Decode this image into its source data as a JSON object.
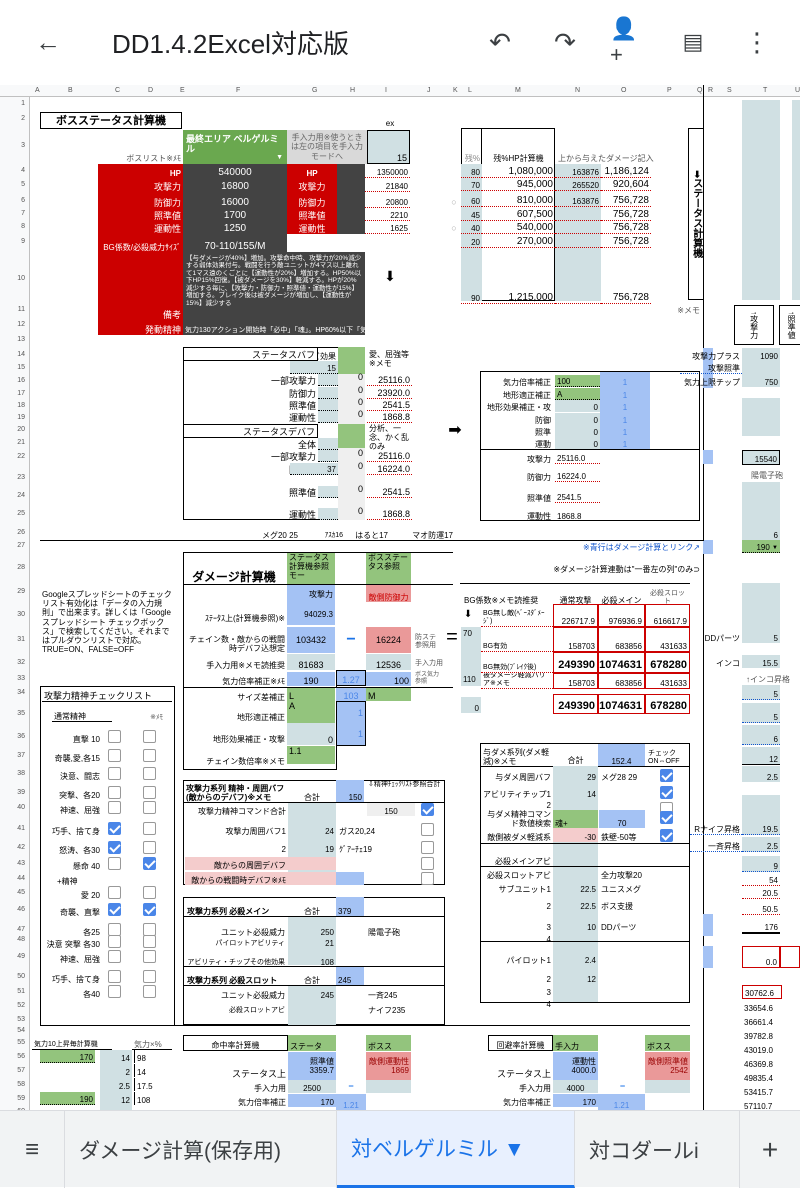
{
  "app": {
    "title": "DD1.4.2Excel対応版",
    "icons": [
      "back-arrow-icon",
      "undo-icon",
      "redo-icon",
      "add-person-icon",
      "comment-icon",
      "more-vert-icon"
    ]
  },
  "columns": [
    "A",
    "B",
    "C",
    "D",
    "E",
    "F",
    "G",
    "H",
    "I",
    "J",
    "K",
    "L",
    "M",
    "N",
    "O",
    "P",
    "Q",
    "R",
    "S",
    "T",
    "U"
  ],
  "boss": {
    "title": "ボスステータス計算機",
    "list_label": "ボスリスト※ﾒﾓ",
    "selected": "最終エリア ベルゲルミル",
    "manual_note": "手入力用※使うときは左の項目を手入力モードへ",
    "ex_label": "ex",
    "ex_value": "15",
    "stats": [
      {
        "label": "HP",
        "value": "540000",
        "manual_label": "HP",
        "manual_value": "1350000"
      },
      {
        "label": "攻撃力",
        "value": "16800",
        "manual_label": "攻撃力",
        "manual_value": "21840"
      },
      {
        "label": "防御力",
        "value": "16000",
        "manual_label": "防御力",
        "manual_value": "20800"
      },
      {
        "label": "照準値",
        "value": "1700",
        "manual_label": "照準値",
        "manual_value": "2210"
      },
      {
        "label": "運動性",
        "value": "1250",
        "manual_label": "運動性",
        "manual_value": "1625"
      }
    ],
    "bg_label": "BG係数/必殺威力ｻｲｽﾞ",
    "bg_value": "70-110/155/M",
    "remarks_label": "備考",
    "remarks": "【与ダメージが40%】増加。攻撃命中時、攻撃力が20%減少する弱体効果付与。戦闘を行う敵ユニットが4マス以上離れて1マス遠のくごとに【運動性が20%】増加する。HP50%以下HP15%回復。【被ダメージを30%】軽減する。HPが20%減少する毎に、【攻撃力・防御力・照準値・運動性が15%】増加する。ブレイク後は被ダメージが増加し、【運動性が15%】減少する",
    "spirit_label": "発動精神",
    "spirit": "気力130アクション開始時「必中」「魂」。HP60%以下「気合」「鉄壁」「集中」。HP40%以下「不屈」「屈"
  },
  "hp_calc": {
    "headers": [
      "残%",
      "残%HP計算機",
      "上から与えたダメージ記入"
    ],
    "rows": [
      {
        "pct": "80",
        "hp": "1,080,000",
        "dmg": "163876",
        "rem": "1,186,124"
      },
      {
        "pct": "70",
        "hp": "945,000",
        "dmg": "265520",
        "rem": "920,604"
      },
      {
        "pct": "60",
        "hp": "810,000",
        "dmg": "163876",
        "rem": "756,728"
      },
      {
        "pct": "45",
        "hp": "607,500",
        "dmg": "",
        "rem": "756,728"
      },
      {
        "pct": "40",
        "hp": "540,000",
        "dmg": "",
        "rem": "756,728"
      },
      {
        "pct": "20",
        "hp": "270,000",
        "dmg": "",
        "rem": "756,728"
      },
      {
        "pct": "90",
        "hp": "1,215,000",
        "dmg": "",
        "rem": "756,728"
      }
    ],
    "marker": "○"
  },
  "side": {
    "title": "➡ステータス計算機",
    "memo": "※メモ",
    "col1": "↑攻撃力",
    "col2": "↑照準値",
    "rows": [
      {
        "label": "攻撃力プラス",
        "value": "1090"
      },
      {
        "label": "攻撃照準",
        "value": ""
      },
      {
        "label": "気力上限チップ",
        "value": "750"
      }
    ],
    "total": "15540",
    "weapon": "陽電子砲",
    "v6": "6",
    "kiryoku": "190",
    "dd_label": "DDパーツ",
    "dd_value": "5",
    "inko_label": "インコ",
    "inko_value": "15.5",
    "inko_up": "↑インコ昇格",
    "vals": [
      "5",
      "5",
      "6",
      "12",
      "2.5"
    ],
    "rknife_label": "Rナイフ昇格",
    "rknife": "19.5",
    "issei_label": "一斉昇格",
    "issei": "2.5",
    "more": [
      "9",
      "54",
      "20.5",
      "50.5",
      "176"
    ],
    "zero": "0.0",
    "series": [
      "30762.6",
      "33654.6",
      "36661.4",
      "39782.8",
      "43019.0",
      "46369.8",
      "49835.4",
      "53415.7",
      "57110.7"
    ]
  },
  "buff": {
    "title": "ステータスバフ",
    "abi_label": "アビ効果",
    "note": "愛、屈強等※メモ",
    "rows": [
      {
        "label": "全体",
        "input": "15",
        "base": "",
        "value": ""
      },
      {
        "label": "一部攻撃力",
        "input": "",
        "base": "0",
        "value": "25116.0"
      },
      {
        "label": "防御力",
        "input": "",
        "base": "0",
        "value": "23920.0"
      },
      {
        "label": "照準値",
        "input": "",
        "base": "0",
        "value": "2541.5"
      },
      {
        "label": "運動性",
        "input": "",
        "base": "0",
        "value": "1868.8"
      }
    ]
  },
  "debuff": {
    "title": "ステータスデバフ",
    "note": "分析、一念、かく乱のみ",
    "rows": [
      {
        "label": "全体",
        "input": "",
        "base": "",
        "value": ""
      },
      {
        "label": "一部攻撃力",
        "input": "",
        "base": "0",
        "value": "25116.0"
      },
      {
        "label": "防御力",
        "input": "37",
        "base": "0",
        "value": "16224.0"
      },
      {
        "label": "照準値",
        "input": "",
        "base": "0",
        "value": "2541.5"
      },
      {
        "label": "運動性",
        "input": "",
        "base": "0",
        "value": "1868.8"
      }
    ]
  },
  "arrow_right": "➡",
  "arrow_down": "⬇",
  "mods": {
    "rows": [
      {
        "label": "気力倍率補正",
        "input": "100",
        "mult": "1"
      },
      {
        "label": "地形適正補正",
        "input": "A",
        "mult": "1"
      },
      {
        "label": "地形効果補正・攻",
        "input": "0",
        "mult": "1"
      },
      {
        "label": "防御",
        "input": "0",
        "mult": "1"
      },
      {
        "label": "照準",
        "input": "0",
        "mult": "1"
      },
      {
        "label": "運動",
        "input": "0",
        "mult": "1"
      }
    ],
    "results": [
      {
        "label": "攻撃力",
        "value": "25116.0"
      },
      {
        "label": "防御力",
        "value": "16224.0"
      },
      {
        "label": "照準値",
        "value": "2541.5"
      },
      {
        "label": "運動性",
        "value": "1868.8"
      }
    ]
  },
  "notes": {
    "memo_row": [
      "メグ20 25",
      "ｱｽｶ16",
      "はると17",
      "マオ防運17"
    ],
    "blue_link": "※青行はダメージ計算とリンク↗",
    "dmg_link": "※ダメージ計算連動は\"一番左の列\"のみ⊃",
    "google": "Googleスプレッドシートのチェックリスト有効化は「データの入力規則」で出来ます。詳しくは「Googleスプレッドシート チェックボックス」で検索してください。それまではプルダウンリストで対応。TRUE=ON、FALSE=OFF"
  },
  "damage": {
    "title": "ダメージ計算機",
    "mode1": "ステータス計算機参照モー",
    "mode2": "ボスステータス参照",
    "atk_label": "攻撃力",
    "def_label": "敵側防御力",
    "status_label": "ｽﾃｰﾀｽ上(計算機参照)※",
    "status_value": "94029.3",
    "chain_label": "チェイン数・敵からの戦闘時デバフ込想定",
    "chain_value": "103432",
    "def_value": "16224",
    "def_note": "防ステ参照用",
    "manual_label": "手入力用※メモ読推奨",
    "manual_value": "81683",
    "manual_def": "12536",
    "manual_note": "手入力用",
    "kiryoku_label": "気力倍率補正※ﾒﾓ",
    "kiryoku": "190",
    "kiryoku_mult": "1.27",
    "boss_kiryoku": "100",
    "boss_kiryoku_note": "ボス気力参照",
    "size_label": "サイズ差補正",
    "size": "L",
    "size_mult": "103",
    "boss_size": "M",
    "terrain_label": "地形適正補正",
    "terrain": "A",
    "terrain_mult": "1",
    "terrain_eff_label": "地形効果補正・攻撃",
    "terrain_eff": "0",
    "terrain_eff_mult": "1",
    "chain_rate_label": "チェイン数倍率※メモ",
    "chain_rate": "1.1",
    "minus": "−",
    "equals": "="
  },
  "results": {
    "bg_label": "BG係数※メモ読推奨",
    "headers": [
      "通常攻撃",
      "必殺メイン",
      "必殺スロット"
    ],
    "bg_values": [
      "70",
      "110"
    ],
    "barrier_input": "0",
    "rows": [
      {
        "label": "BG無し敵(ﾍﾞｰｽﾀﾞﾒｰｼﾞ)",
        "values": [
          "226717.9",
          "976936.9",
          "616617.9"
        ]
      },
      {
        "label": "BG有効",
        "values": [
          "158703",
          "683856",
          "431633"
        ]
      },
      {
        "label": "BG無効(ﾌﾞﾚｲｸ後)",
        "values": [
          "249390",
          "1074631",
          "678280"
        ]
      },
      {
        "label": "被ダメージ軽減バリア※メモ",
        "values": [
          "158703",
          "683856",
          "431633"
        ]
      },
      {
        "label": "",
        "values": [
          "249390",
          "1074631",
          "678280"
        ]
      }
    ]
  },
  "checklist": {
    "title": "攻撃力精神チェックリスト",
    "normal": "通常精神",
    "memo": "※ﾒﾓ",
    "plus": "+精神",
    "items": [
      {
        "label": "直撃 10",
        "c": false,
        "d": false
      },
      {
        "label": "奇襲,愛,各15",
        "c": false,
        "d": false
      },
      {
        "label": "決意、闘志",
        "c": false,
        "d": false
      },
      {
        "label": "突撃、各20",
        "c": false,
        "d": false
      },
      {
        "label": "神速、屈強",
        "c": false,
        "d": false
      },
      {
        "label": "巧手、捨て身",
        "c": true,
        "d": false
      },
      {
        "label": "怒涛、各30",
        "c": true,
        "d": false
      },
      {
        "label": "懸命 40",
        "c": false,
        "d": true
      },
      {
        "label": "愛 20",
        "c": false,
        "d": false
      },
      {
        "label": "奇襲、直撃",
        "c": true,
        "d": true
      },
      {
        "label": "各25",
        "c": false,
        "d": false
      },
      {
        "label": "決意 突撃 各30",
        "c": false,
        "d": false
      },
      {
        "label": "神速、屈強",
        "c": false,
        "d": false
      },
      {
        "label": "巧手、捨て身",
        "c": false,
        "d": false
      },
      {
        "label": "各40",
        "c": false,
        "d": false
      }
    ]
  },
  "atk_buff": {
    "title": "攻撃力系列 精神・周囲バフ(敵からのデバフ)※メモ",
    "total_label": "合計",
    "total": "150",
    "ref_note": "⇩精神ﾁｪｯｸﾘｽﾄ参照合計",
    "ref_value": "150",
    "rows": [
      {
        "label": "攻撃力精神コマンド合計",
        "value": "",
        "note": ""
      },
      {
        "label": "攻撃力周囲バフ1",
        "value": "24",
        "note": "ガス20,24"
      },
      {
        "label": "2",
        "value": "19",
        "note": "ｸﾞｱｰﾁｪ19"
      },
      {
        "label": "敵からの周囲デバフ",
        "value": "",
        "note": ""
      },
      {
        "label": "敵からの戦闘時デバフ※ﾒﾓ",
        "value": "",
        "note": ""
      }
    ],
    "checks": [
      true,
      false,
      false,
      false,
      false
    ]
  },
  "sp_main": {
    "title": "攻撃力系列 必殺メイン",
    "total_label": "合計",
    "total": "379",
    "rows": [
      {
        "label": "ユニット必殺威力",
        "value": "250",
        "note": "陽電子砲"
      },
      {
        "label": "パイロットアビリティ",
        "value": "21",
        "note": ""
      },
      {
        "label": "アビリティ・チップその他効果",
        "value": "108",
        "note": ""
      }
    ]
  },
  "sp_slot": {
    "title": "攻撃力系列 必殺スロット",
    "total_label": "合計",
    "total": "245",
    "rows": [
      {
        "label": "ユニット必殺威力",
        "value": "245",
        "note": "一斉245"
      },
      {
        "label": "必殺スロットアビ",
        "value": "",
        "note": "ナイフ235"
      }
    ]
  },
  "dmg_up": {
    "title": "与ダメ系列(ダメ軽減)※メモ",
    "total_label": "合計",
    "total": "152.4",
    "check_label": "チェック ON⇔OFF",
    "rows": [
      {
        "label": "与ダメ周囲バフ",
        "value": "29",
        "note": "メグ28 29",
        "check": true
      },
      {
        "label": "アビリティチップ1",
        "value": "14",
        "note": "",
        "check": true
      },
      {
        "label": "2",
        "value": "",
        "note": "",
        "check": false
      },
      {
        "label": "与ダメ精神コマンド数値検索",
        "value": "魂+",
        "note": "70",
        "check": true
      },
      {
        "label": "敵側被ダメ軽減系",
        "value": "-30",
        "note": "鉄壁-50等",
        "check": true
      }
    ],
    "rows2": [
      {
        "label": "必殺メインアビ",
        "value": "",
        "note": ""
      },
      {
        "label": "必殺スロットアビ",
        "value": "",
        "note": "全力攻撃20"
      },
      {
        "label": "サブユニット1",
        "value": "22.5",
        "note": "ユニスメグ"
      },
      {
        "label": "2",
        "value": "22.5",
        "note": "ボス支援"
      },
      {
        "label": "3",
        "value": "10",
        "note": "DDパーツ"
      },
      {
        "label": "4",
        "value": "",
        "note": ""
      },
      {
        "label": "パイロット1",
        "value": "2.4",
        "note": ""
      },
      {
        "label": "2",
        "value": "12",
        "note": ""
      },
      {
        "label": "3",
        "value": "",
        "note": ""
      },
      {
        "label": "4",
        "value": "",
        "note": ""
      }
    ]
  },
  "kiryoku_calc": {
    "title": "気力10上昇毎計算機",
    "col": "気力×%",
    "rows": [
      {
        "sel": "170",
        "a": "14",
        "b": "98"
      },
      {
        "sel": "",
        "a": "2",
        "b": "14"
      },
      {
        "sel": "",
        "a": "2.5",
        "b": "17.5"
      },
      {
        "sel": "190",
        "a": "12",
        "b": "108"
      }
    ]
  },
  "hit_calc": {
    "title": "命中率計算機",
    "mode1": "ステータ",
    "mode2": "ボスス",
    "stat_label": "照準値",
    "stat_value": "3359.7",
    "enemy_label": "敵側運動性",
    "enemy_value": "1869",
    "status_label": "ステータス上",
    "manual_label": "手入力用",
    "manual_value": "2500",
    "kiryoku_label": "気力倍率補正",
    "kiryoku": "170",
    "mult": "1.21"
  },
  "eva_calc": {
    "title": "回避率計算機",
    "mode1": "手入力",
    "mode2": "ボスス",
    "stat_label": "運動性",
    "stat_value": "4000.0",
    "enemy_label": "敵側照準値",
    "enemy_value": "2542",
    "status_label": "ステータス上",
    "manual_label": "手入力用",
    "manual_value": "4000",
    "kiryoku_label": "気力倍率補正",
    "kiryoku": "170",
    "mult": "1.21"
  },
  "tabs": {
    "menu_icon": "menu-icon",
    "items": [
      "ダメージ計算(保存用)",
      "対ベルゲルミル ▼",
      "対コダールi"
    ],
    "active": 1,
    "add": "+"
  },
  "colors": {
    "red": "#cc0000",
    "dark": "#434343",
    "green": "#6aa84f",
    "blue": "#a4c2f4",
    "grayblue": "#d0e0e3",
    "accent": "#1a73e8"
  }
}
